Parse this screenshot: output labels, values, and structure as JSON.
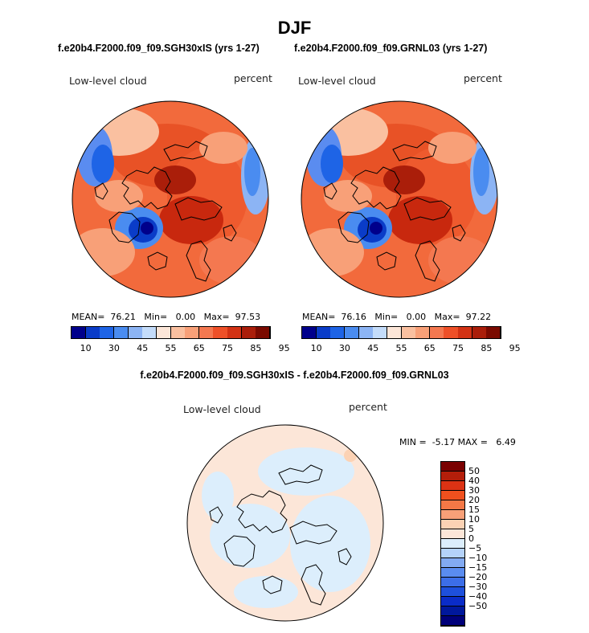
{
  "figure": {
    "season": "DJF"
  },
  "chart_data": [
    {
      "type": "heatmap",
      "projection": "north-polar-stereographic",
      "title": "f.e20b4.F2000.f09_f09.SGH30xIS (yrs 1-27)",
      "left_label": "Low-level cloud",
      "right_label": "percent",
      "stats": {
        "mean_label": "MEAN=",
        "mean": "76.21",
        "min_label": "Min=",
        "min": "0.00",
        "max_label": "Max=",
        "max": "97.53"
      },
      "colorbar": {
        "colors": [
          "#00008b",
          "#0a3cc8",
          "#1e64e6",
          "#4a8cf0",
          "#8cb4f4",
          "#c4dcfa",
          "#fce6d8",
          "#fac0a0",
          "#f8a078",
          "#f47850",
          "#ee5028",
          "#d23214",
          "#aa1e0a",
          "#7a0a00"
        ],
        "tick_labels": [
          "10",
          "30",
          "45",
          "55",
          "65",
          "75",
          "85",
          "95"
        ]
      }
    },
    {
      "type": "heatmap",
      "projection": "north-polar-stereographic",
      "title": "f.e20b4.F2000.f09_f09.GRNL03 (yrs 1-27)",
      "left_label": "Low-level cloud",
      "right_label": "percent",
      "stats": {
        "mean_label": "MEAN=",
        "mean": "76.16",
        "min_label": "Min=",
        "min": "0.00",
        "max_label": "Max=",
        "max": "97.22"
      },
      "colorbar": {
        "colors": [
          "#00008b",
          "#0a3cc8",
          "#1e64e6",
          "#4a8cf0",
          "#8cb4f4",
          "#c4dcfa",
          "#fce6d8",
          "#fac0a0",
          "#f8a078",
          "#f47850",
          "#ee5028",
          "#d23214",
          "#aa1e0a",
          "#7a0a00"
        ],
        "tick_labels": [
          "10",
          "30",
          "45",
          "55",
          "65",
          "75",
          "85",
          "95"
        ]
      }
    },
    {
      "type": "heatmap",
      "projection": "north-polar-stereographic",
      "title": "f.e20b4.F2000.f09_f09.SGH30xIS - f.e20b4.F2000.f09_f09.GRNL03",
      "left_label": "Low-level cloud",
      "right_label": "percent",
      "stats": {
        "min_label": "MIN =",
        "min": "-5.17",
        "max_label": "MAX =",
        "max": "6.49"
      },
      "colorbar": {
        "colors": [
          "#7a0000",
          "#b41e0a",
          "#dc3214",
          "#f0501e",
          "#f47846",
          "#f8a078",
          "#fcd2b4",
          "#fce6d8",
          "#dceefc",
          "#b4d2fa",
          "#82aaf2",
          "#5a8cf0",
          "#3c6ee8",
          "#1e50dc",
          "#0a2cc8",
          "#00189c",
          "#00007a"
        ],
        "tick_labels": [
          "50",
          "40",
          "30",
          "20",
          "15",
          "10",
          "5",
          "0",
          "−5",
          "−10",
          "−15",
          "−20",
          "−30",
          "−40",
          "−50"
        ]
      }
    }
  ]
}
